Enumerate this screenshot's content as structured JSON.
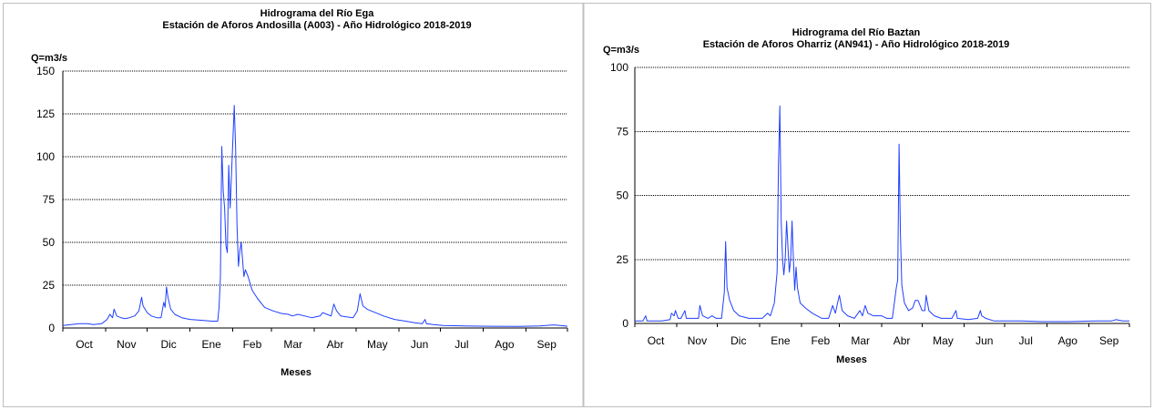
{
  "chart_data": [
    {
      "type": "line",
      "title": "Hidrograma del Río Ega",
      "subtitle": "Estación de Aforos Andosilla (A003) - Año Hidrológico 2018-2019",
      "ylabel": "Q=m3/s",
      "xlabel": "Meses",
      "ylim": [
        0,
        150
      ],
      "yticks": [
        "0",
        "25",
        "50",
        "75",
        "100",
        "125",
        "150"
      ],
      "grid": true,
      "months": [
        "Oct",
        "Nov",
        "Dic",
        "Ene",
        "Feb",
        "Mar",
        "Abr",
        "May",
        "Jun",
        "Jul",
        "Ago",
        "Sep"
      ],
      "series": [
        {
          "color": "#1f3fff",
          "points": [
            [
              0,
              1.5
            ],
            [
              6,
              2
            ],
            [
              12,
              2.5
            ],
            [
              18,
              2.5
            ],
            [
              22,
              2
            ],
            [
              28,
              2.5
            ],
            [
              32,
              5
            ],
            [
              34,
              8
            ],
            [
              36,
              6
            ],
            [
              37,
              11
            ],
            [
              39,
              7
            ],
            [
              42,
              6
            ],
            [
              45,
              5.5
            ],
            [
              48,
              6
            ],
            [
              52,
              7
            ],
            [
              55,
              10
            ],
            [
              57,
              18
            ],
            [
              58,
              13
            ],
            [
              61,
              9
            ],
            [
              64,
              7
            ],
            [
              68,
              6
            ],
            [
              71,
              6
            ],
            [
              73,
              15
            ],
            [
              74,
              12
            ],
            [
              75,
              24
            ],
            [
              76,
              18
            ],
            [
              78,
              11
            ],
            [
              81,
              8
            ],
            [
              86,
              6
            ],
            [
              92,
              5
            ],
            [
              100,
              4.5
            ],
            [
              108,
              4
            ],
            [
              112,
              4
            ],
            [
              113,
              12
            ],
            [
              114,
              30
            ],
            [
              115,
              106
            ],
            [
              116,
              80
            ],
            [
              117,
              70
            ],
            [
              118,
              48
            ],
            [
              119,
              44
            ],
            [
              120,
              95
            ],
            [
              121,
              70
            ],
            [
              122,
              90
            ],
            [
              124,
              130
            ],
            [
              125,
              105
            ],
            [
              126,
              60
            ],
            [
              127,
              36
            ],
            [
              128,
              45
            ],
            [
              129,
              50
            ],
            [
              130,
              40
            ],
            [
              131,
              30
            ],
            [
              132,
              34
            ],
            [
              134,
              30
            ],
            [
              137,
              22
            ],
            [
              141,
              17
            ],
            [
              146,
              12
            ],
            [
              152,
              10
            ],
            [
              158,
              8.5
            ],
            [
              163,
              8
            ],
            [
              166,
              7
            ],
            [
              170,
              8
            ],
            [
              175,
              7
            ],
            [
              180,
              6
            ],
            [
              186,
              7
            ],
            [
              188,
              9
            ],
            [
              191,
              8
            ],
            [
              194,
              7
            ],
            [
              196,
              14
            ],
            [
              198,
              10
            ],
            [
              201,
              7
            ],
            [
              205,
              6.5
            ],
            [
              210,
              6
            ],
            [
              213,
              10
            ],
            [
              215,
              20
            ],
            [
              217,
              13
            ],
            [
              220,
              11
            ],
            [
              226,
              9
            ],
            [
              232,
              7
            ],
            [
              240,
              5
            ],
            [
              248,
              4
            ],
            [
              255,
              3
            ],
            [
              260,
              2.5
            ],
            [
              262,
              5
            ],
            [
              263,
              2.5
            ],
            [
              268,
              2
            ],
            [
              275,
              1.5
            ],
            [
              290,
              1.2
            ],
            [
              310,
              1
            ],
            [
              330,
              0.9
            ],
            [
              345,
              1.2
            ],
            [
              355,
              1.8
            ],
            [
              360,
              1.5
            ],
            [
              365,
              1
            ]
          ]
        }
      ]
    },
    {
      "type": "line",
      "title": "Hidrograma del Río Baztan",
      "subtitle": "Estación de Aforos Oharriz (AN941) - Año Hidrológico 2018-2019",
      "ylabel": "Q=m3/s",
      "xlabel": "Meses",
      "ylim": [
        0,
        100
      ],
      "yticks": [
        "0",
        "25",
        "50",
        "75",
        "100"
      ],
      "grid": true,
      "months": [
        "Oct",
        "Nov",
        "Dic",
        "Ene",
        "Feb",
        "Mar",
        "Abr",
        "May",
        "Jun",
        "Jul",
        "Ago",
        "Sep"
      ],
      "series": [
        {
          "color": "#1f3fff",
          "points": [
            [
              0,
              1
            ],
            [
              6,
              1
            ],
            [
              8,
              3
            ],
            [
              9,
              1
            ],
            [
              20,
              1
            ],
            [
              26,
              1.5
            ],
            [
              27,
              4
            ],
            [
              29,
              3
            ],
            [
              30,
              5
            ],
            [
              32,
              2
            ],
            [
              34,
              2
            ],
            [
              37,
              5
            ],
            [
              38,
              2
            ],
            [
              47,
              2
            ],
            [
              48,
              7
            ],
            [
              50,
              3
            ],
            [
              54,
              2
            ],
            [
              57,
              3
            ],
            [
              60,
              2
            ],
            [
              64,
              2
            ],
            [
              66,
              12
            ],
            [
              67,
              32
            ],
            [
              68,
              14
            ],
            [
              70,
              9
            ],
            [
              73,
              5
            ],
            [
              77,
              3
            ],
            [
              84,
              2
            ],
            [
              94,
              2
            ],
            [
              98,
              4
            ],
            [
              100,
              3
            ],
            [
              103,
              8
            ],
            [
              105,
              20
            ],
            [
              106,
              62
            ],
            [
              107,
              85
            ],
            [
              108,
              40
            ],
            [
              109,
              25
            ],
            [
              110,
              19
            ],
            [
              111,
              25
            ],
            [
              112,
              40
            ],
            [
              113,
              30
            ],
            [
              114,
              20
            ],
            [
              115,
              25
            ],
            [
              116,
              40
            ],
            [
              117,
              25
            ],
            [
              118,
              13
            ],
            [
              119,
              22
            ],
            [
              120,
              14
            ],
            [
              122,
              8
            ],
            [
              126,
              6
            ],
            [
              131,
              4
            ],
            [
              138,
              2
            ],
            [
              143,
              2
            ],
            [
              146,
              7
            ],
            [
              148,
              4
            ],
            [
              150,
              9
            ],
            [
              151,
              11
            ],
            [
              153,
              5
            ],
            [
              157,
              3
            ],
            [
              162,
              2
            ],
            [
              166,
              5
            ],
            [
              168,
              3
            ],
            [
              170,
              7
            ],
            [
              172,
              4
            ],
            [
              176,
              3
            ],
            [
              182,
              3
            ],
            [
              186,
              2
            ],
            [
              190,
              2
            ],
            [
              193,
              14
            ],
            [
              194,
              17
            ],
            [
              195,
              70
            ],
            [
              196,
              35
            ],
            [
              197,
              15
            ],
            [
              199,
              8
            ],
            [
              202,
              5
            ],
            [
              205,
              6
            ],
            [
              207,
              9
            ],
            [
              209,
              9
            ],
            [
              212,
              5
            ],
            [
              214,
              5
            ],
            [
              215,
              11
            ],
            [
              217,
              5
            ],
            [
              221,
              3
            ],
            [
              226,
              2
            ],
            [
              234,
              2
            ],
            [
              237,
              5
            ],
            [
              238,
              2
            ],
            [
              246,
              1.5
            ],
            [
              253,
              2
            ],
            [
              255,
              5
            ],
            [
              256,
              3
            ],
            [
              259,
              2
            ],
            [
              265,
              1
            ],
            [
              285,
              1
            ],
            [
              300,
              0.7
            ],
            [
              320,
              0.7
            ],
            [
              340,
              1
            ],
            [
              352,
              1
            ],
            [
              355,
              1.5
            ],
            [
              360,
              1
            ],
            [
              365,
              1
            ]
          ]
        }
      ]
    }
  ]
}
